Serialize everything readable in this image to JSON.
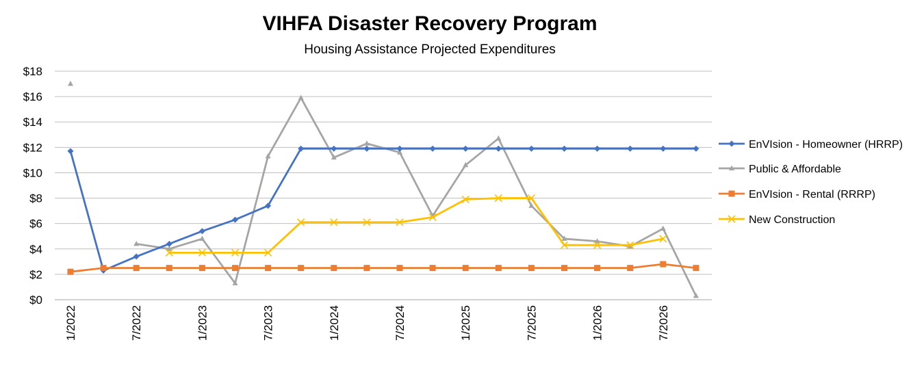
{
  "chart_data": {
    "type": "line",
    "title": "VIHFA Disaster Recovery Program",
    "subtitle": "Housing Assistance Projected Expenditures",
    "xlabel": "",
    "ylabel": "",
    "ylim": [
      0,
      18
    ],
    "y_ticks": [
      0,
      2,
      4,
      6,
      8,
      10,
      12,
      14,
      16,
      18
    ],
    "y_tick_labels": [
      "$0",
      "$2",
      "$4",
      "$6",
      "$8",
      "$10",
      "$12",
      "$14",
      "$16",
      "$18"
    ],
    "grid": true,
    "legend_position": "right",
    "x": [
      "1/2022",
      "4/2022",
      "7/2022",
      "10/2022",
      "1/2023",
      "4/2023",
      "7/2023",
      "10/2023",
      "1/2024",
      "4/2024",
      "7/2024",
      "10/2024",
      "1/2025",
      "4/2025",
      "7/2025",
      "10/2025",
      "1/2026",
      "4/2026",
      "7/2026",
      "10/2026"
    ],
    "x_tick_labels": [
      "1/2022",
      "",
      "7/2022",
      "",
      "1/2023",
      "",
      "7/2023",
      "",
      "1/2024",
      "",
      "7/2024",
      "",
      "1/2025",
      "",
      "7/2025",
      "",
      "1/2026",
      "",
      "7/2026",
      ""
    ],
    "series": [
      {
        "name": "EnVIsion - Homeowner (HRRP)",
        "color": "#4472C4",
        "marker": "diamond",
        "values": [
          11.7,
          2.3,
          3.4,
          4.4,
          5.4,
          6.3,
          7.4,
          11.9,
          11.9,
          11.9,
          11.9,
          11.9,
          11.9,
          11.9,
          11.9,
          11.9,
          11.9,
          11.9,
          11.9,
          11.9
        ]
      },
      {
        "name": "Public & Affordable",
        "color": "#A5A5A5",
        "marker": "triangle",
        "values": [
          17.0,
          null,
          4.4,
          4.0,
          4.8,
          1.3,
          11.3,
          15.9,
          11.2,
          12.3,
          11.6,
          6.6,
          10.6,
          12.7,
          7.4,
          4.8,
          4.6,
          4.2,
          5.6,
          0.3
        ]
      },
      {
        "name": "EnVIsion - Rental (RRRP)",
        "color": "#ED7D31",
        "marker": "square",
        "values": [
          2.2,
          2.5,
          2.5,
          2.5,
          2.5,
          2.5,
          2.5,
          2.5,
          2.5,
          2.5,
          2.5,
          2.5,
          2.5,
          2.5,
          2.5,
          2.5,
          2.5,
          2.5,
          2.8,
          2.5
        ]
      },
      {
        "name": "New Construction",
        "color": "#FFC000",
        "marker": "x",
        "values": [
          null,
          null,
          null,
          3.7,
          3.7,
          3.7,
          3.7,
          6.1,
          6.1,
          6.1,
          6.1,
          6.5,
          7.9,
          8.0,
          8.0,
          4.3,
          4.3,
          4.3,
          4.8,
          null
        ]
      }
    ]
  }
}
